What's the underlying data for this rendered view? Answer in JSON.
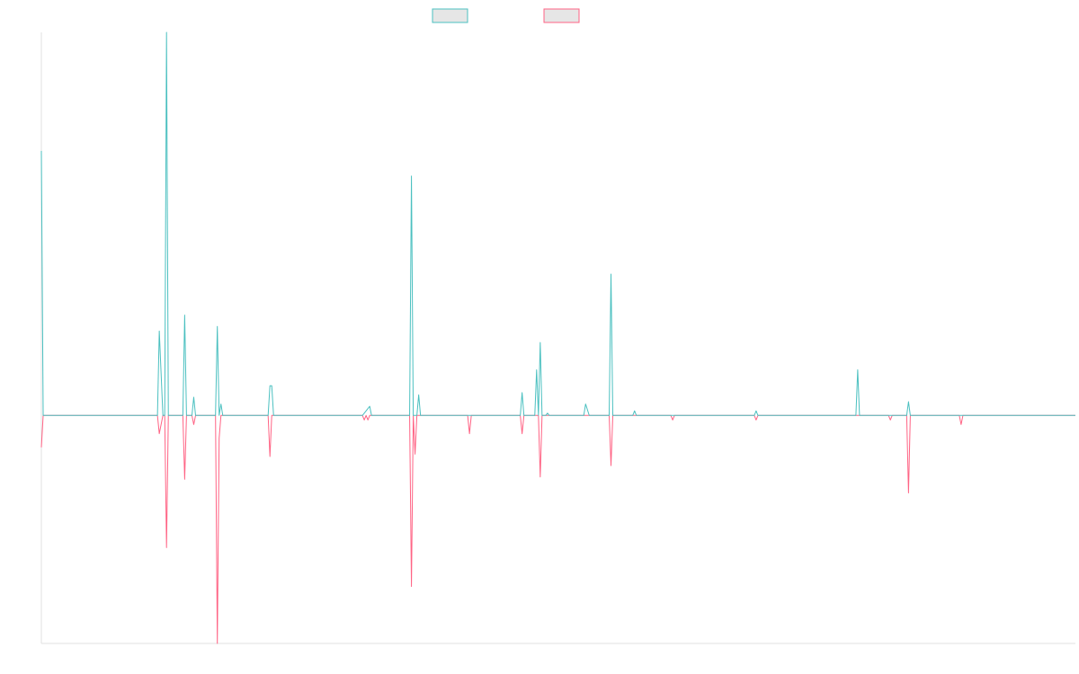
{
  "chart_data": {
    "type": "line",
    "x_range": [
      0,
      57
    ],
    "ylim": [
      -1,
      1.68
    ],
    "grid": false,
    "legend": "top-center",
    "series": [
      {
        "name": "",
        "color": "#4bc0c0",
        "fill": "#e6e6e6",
        "points": [
          [
            0,
            1.16
          ],
          [
            0.1,
            0
          ],
          [
            5.5,
            0
          ],
          [
            6.4,
            0
          ],
          [
            6.5,
            0.37
          ],
          [
            6.7,
            0
          ],
          [
            6.8,
            0
          ],
          [
            6.9,
            1.68
          ],
          [
            7.0,
            0
          ],
          [
            7.8,
            0
          ],
          [
            7.9,
            0.44
          ],
          [
            8.0,
            0
          ],
          [
            8.3,
            0
          ],
          [
            8.4,
            0.08
          ],
          [
            8.5,
            0
          ],
          [
            9.6,
            0
          ],
          [
            9.7,
            0.39
          ],
          [
            9.8,
            0
          ],
          [
            9.9,
            0.05
          ],
          [
            10.0,
            0
          ],
          [
            12.5,
            0
          ],
          [
            12.6,
            0.13
          ],
          [
            12.7,
            0.13
          ],
          [
            12.8,
            0
          ],
          [
            17.7,
            0
          ],
          [
            18.1,
            0.04
          ],
          [
            18.2,
            0
          ],
          [
            20.3,
            0
          ],
          [
            20.4,
            1.05
          ],
          [
            20.5,
            0
          ],
          [
            20.7,
            0
          ],
          [
            20.8,
            0.09
          ],
          [
            20.9,
            0
          ],
          [
            26.4,
            0
          ],
          [
            26.5,
            0.1
          ],
          [
            26.6,
            0
          ],
          [
            27.2,
            0
          ],
          [
            27.3,
            0.2
          ],
          [
            27.4,
            0
          ],
          [
            27.5,
            0.32
          ],
          [
            27.6,
            0
          ],
          [
            27.8,
            0
          ],
          [
            27.9,
            0.01
          ],
          [
            28.0,
            0
          ],
          [
            29.9,
            0
          ],
          [
            30.0,
            0.05
          ],
          [
            30.2,
            0
          ],
          [
            31.3,
            0
          ],
          [
            31.4,
            0.62
          ],
          [
            31.5,
            0
          ],
          [
            32.6,
            0
          ],
          [
            32.7,
            0.02
          ],
          [
            32.8,
            0
          ],
          [
            39.3,
            0
          ],
          [
            39.4,
            0.02
          ],
          [
            39.5,
            0
          ],
          [
            44.9,
            0
          ],
          [
            45.0,
            0.2
          ],
          [
            45.1,
            0
          ],
          [
            47.7,
            0
          ],
          [
            47.8,
            0.06
          ],
          [
            47.9,
            0
          ],
          [
            57,
            0
          ]
        ]
      },
      {
        "name": "",
        "color": "#ff6384",
        "fill": "#e6e6e6",
        "points": [
          [
            0,
            -0.14
          ],
          [
            0.1,
            0
          ],
          [
            6.4,
            0
          ],
          [
            6.5,
            -0.08
          ],
          [
            6.7,
            0
          ],
          [
            6.8,
            0
          ],
          [
            6.9,
            -0.58
          ],
          [
            7.0,
            0
          ],
          [
            7.8,
            0
          ],
          [
            7.9,
            -0.28
          ],
          [
            8.0,
            0
          ],
          [
            8.3,
            0
          ],
          [
            8.4,
            -0.04
          ],
          [
            8.5,
            0
          ],
          [
            9.6,
            0
          ],
          [
            9.7,
            -1.0
          ],
          [
            9.8,
            -0.1
          ],
          [
            9.9,
            0
          ],
          [
            12.5,
            0
          ],
          [
            12.6,
            -0.18
          ],
          [
            12.7,
            0
          ],
          [
            17.7,
            0
          ],
          [
            17.8,
            -0.02
          ],
          [
            17.9,
            0
          ],
          [
            18.0,
            -0.02
          ],
          [
            18.1,
            0
          ],
          [
            20.3,
            0
          ],
          [
            20.4,
            -0.75
          ],
          [
            20.5,
            0
          ],
          [
            20.6,
            -0.17
          ],
          [
            20.7,
            0
          ],
          [
            23.5,
            0
          ],
          [
            23.6,
            -0.08
          ],
          [
            23.7,
            0
          ],
          [
            26.4,
            0
          ],
          [
            26.5,
            -0.08
          ],
          [
            26.6,
            0
          ],
          [
            27.4,
            0
          ],
          [
            27.5,
            -0.27
          ],
          [
            27.6,
            0
          ],
          [
            31.3,
            0
          ],
          [
            31.4,
            -0.22
          ],
          [
            31.5,
            0
          ],
          [
            34.7,
            0
          ],
          [
            34.8,
            -0.02
          ],
          [
            34.9,
            0
          ],
          [
            39.3,
            0
          ],
          [
            39.4,
            -0.02
          ],
          [
            39.5,
            0
          ],
          [
            46.7,
            0
          ],
          [
            46.8,
            -0.02
          ],
          [
            46.9,
            0
          ],
          [
            47.7,
            0
          ],
          [
            47.8,
            -0.34
          ],
          [
            47.9,
            0
          ],
          [
            50.6,
            0
          ],
          [
            50.7,
            -0.04
          ],
          [
            50.8,
            0
          ],
          [
            57,
            0
          ]
        ]
      }
    ]
  }
}
